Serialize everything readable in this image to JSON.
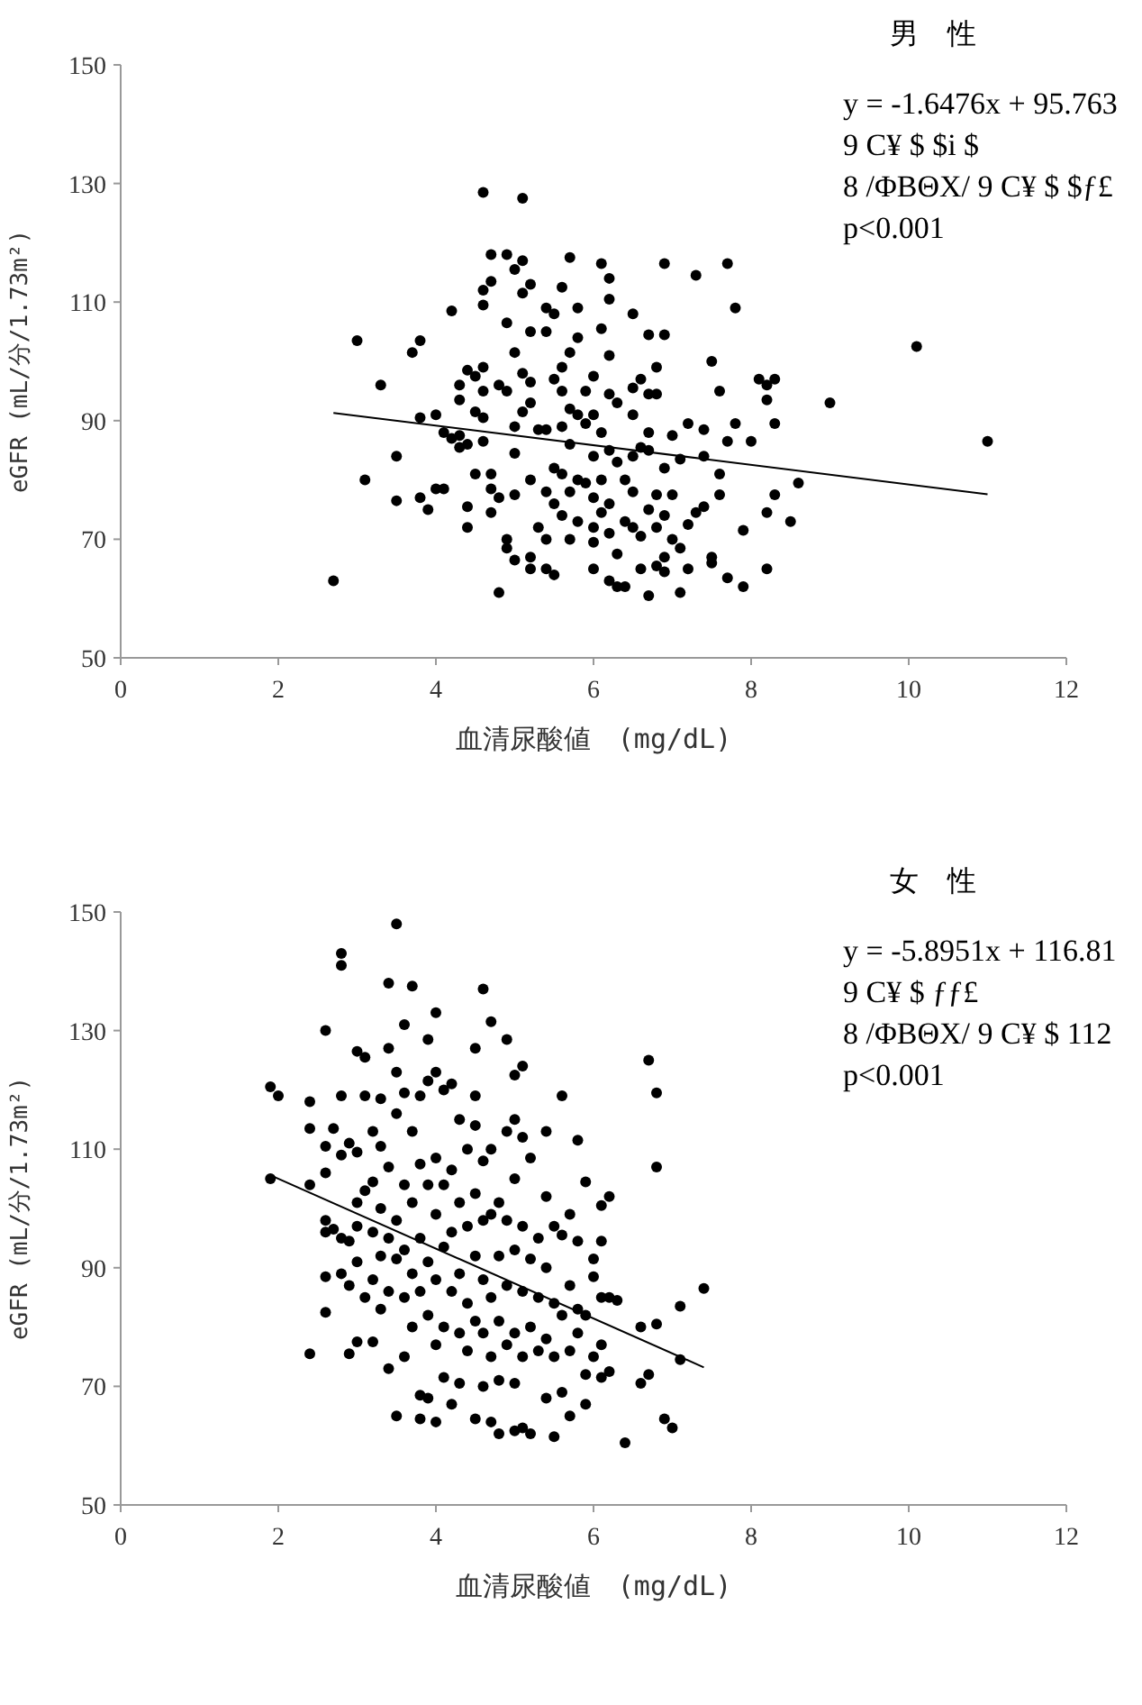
{
  "chart_data": [
    {
      "type": "scatter",
      "title": "男　性",
      "xlabel": "血清尿酸値　(mg/dL)",
      "ylabel": "eGFR (mL/分/1.73m²)",
      "annotations": [
        "y = -1.6476x + 95.763",
        "9 C¥ $ $i $",
        "8 /ΦBΘX/ 9 C¥ $ $ƒ£",
        "p<0.001"
      ],
      "xlim": [
        0,
        12
      ],
      "xticks": [
        0,
        2,
        4,
        6,
        8,
        10,
        12
      ],
      "ylim": [
        50,
        150
      ],
      "yticks": [
        50,
        70,
        90,
        110,
        130,
        150
      ],
      "grid": false,
      "series": [
        {
          "type": "scatter",
          "color": "#000000",
          "marker": "circle",
          "x": [
            2.7,
            3.0,
            3.1,
            3.3,
            3.5,
            3.5,
            3.7,
            3.8,
            3.8,
            3.8,
            3.9,
            4.0,
            4.0,
            4.1,
            4.1,
            4.2,
            4.2,
            4.3,
            4.3,
            4.3,
            4.3,
            4.4,
            4.4,
            4.4,
            4.4,
            4.5,
            4.5,
            4.5,
            4.6,
            4.6,
            4.6,
            4.6,
            4.6,
            4.6,
            4.6,
            4.7,
            4.7,
            4.7,
            4.7,
            4.7,
            4.8,
            4.8,
            4.8,
            4.9,
            4.9,
            4.9,
            4.9,
            4.9,
            5.0,
            5.0,
            5.0,
            5.0,
            5.0,
            5.0,
            5.1,
            5.1,
            5.1,
            5.1,
            5.1,
            5.2,
            5.2,
            5.2,
            5.2,
            5.2,
            5.2,
            5.2,
            5.3,
            5.3,
            5.4,
            5.4,
            5.4,
            5.4,
            5.4,
            5.4,
            5.5,
            5.5,
            5.5,
            5.5,
            5.5,
            5.6,
            5.6,
            5.6,
            5.6,
            5.6,
            5.6,
            5.7,
            5.7,
            5.7,
            5.7,
            5.7,
            5.7,
            5.8,
            5.8,
            5.8,
            5.8,
            5.8,
            5.9,
            5.9,
            5.9,
            6.0,
            6.0,
            6.0,
            6.0,
            6.0,
            6.0,
            6.0,
            6.1,
            6.1,
            6.1,
            6.1,
            6.1,
            6.2,
            6.2,
            6.2,
            6.2,
            6.2,
            6.2,
            6.2,
            6.2,
            6.3,
            6.3,
            6.3,
            6.3,
            6.4,
            6.4,
            6.4,
            6.5,
            6.5,
            6.5,
            6.5,
            6.5,
            6.5,
            6.6,
            6.6,
            6.6,
            6.6,
            6.7,
            6.7,
            6.7,
            6.7,
            6.7,
            6.7,
            6.8,
            6.8,
            6.8,
            6.8,
            6.8,
            6.9,
            6.9,
            6.9,
            6.9,
            6.9,
            6.9,
            7.0,
            7.0,
            7.0,
            7.1,
            7.1,
            7.1,
            7.2,
            7.2,
            7.2,
            7.3,
            7.3,
            7.4,
            7.4,
            7.4,
            7.5,
            7.5,
            7.5,
            7.6,
            7.6,
            7.6,
            7.7,
            7.7,
            7.7,
            7.8,
            7.8,
            7.9,
            7.9,
            8.0,
            8.1,
            8.2,
            8.2,
            8.2,
            8.2,
            8.3,
            8.3,
            8.3,
            8.5,
            8.6,
            9.0,
            10.1,
            11.0
          ],
          "values": [
            63,
            103.5,
            80,
            96,
            84,
            76.5,
            101.5,
            103.5,
            90.5,
            77,
            75,
            91,
            78.5,
            78.5,
            88,
            108.5,
            87,
            87.5,
            85.5,
            96,
            93.5,
            98.5,
            75.5,
            72,
            86,
            97.5,
            91.5,
            81,
            112,
            109.5,
            99,
            95,
            90.5,
            86.5,
            128.5,
            118,
            113.5,
            81,
            78.5,
            74.5,
            96,
            77,
            61,
            118,
            106.5,
            95,
            70,
            68.5,
            115.5,
            101.5,
            89,
            84.5,
            77.5,
            66.5,
            127.5,
            117,
            111.5,
            98,
            91.5,
            113,
            105,
            96.5,
            93,
            80,
            67,
            65,
            88.5,
            72,
            109,
            105,
            88.5,
            78,
            70,
            65,
            108,
            97,
            82,
            76,
            64,
            112.5,
            99,
            95,
            89,
            81,
            74,
            117.5,
            101.5,
            92,
            86,
            78,
            70,
            109,
            104,
            91,
            80,
            73,
            95,
            89.5,
            79.5,
            97.5,
            91,
            84,
            77,
            72,
            69.5,
            65,
            116.5,
            105.5,
            88,
            80,
            74.5,
            114,
            110.5,
            101,
            94.5,
            85,
            76,
            71,
            63,
            93,
            83,
            67.5,
            62,
            80,
            73,
            62,
            108,
            95.5,
            91,
            84,
            78,
            72,
            97,
            85.5,
            70.5,
            65,
            104.5,
            94.5,
            88,
            85,
            75,
            60.5,
            99,
            94.5,
            77.5,
            72,
            65.5,
            116.5,
            104.5,
            82,
            74,
            67,
            64.5,
            87.5,
            77.5,
            70,
            83.5,
            68.5,
            61,
            89.5,
            72.5,
            65,
            114.5,
            74.5,
            88.5,
            84,
            75.5,
            100,
            67,
            66,
            95,
            81,
            77.5,
            116.5,
            86.5,
            63.5,
            109,
            89.5,
            71.5,
            62,
            86.5,
            97,
            96,
            93.5,
            74.5,
            65,
            97,
            89.5,
            77.5,
            73,
            79.5,
            93,
            102.5,
            86.5
          ]
        },
        {
          "type": "line",
          "color": "#000000",
          "marker": "none",
          "x": [
            2.7,
            11.0
          ],
          "values": [
            91.3,
            77.6
          ]
        }
      ]
    },
    {
      "type": "scatter",
      "title": "女　性",
      "xlabel": "血清尿酸値　(mg/dL)",
      "ylabel": "eGFR (mL/分/1.73m²)",
      "annotations": [
        "y = -5.8951x + 116.81",
        "9 C¥ $ ƒƒ£",
        "8 /ΦBΘX/ 9 C¥ $ 112",
        "p<0.001"
      ],
      "xlim": [
        0,
        12
      ],
      "xticks": [
        0,
        2,
        4,
        6,
        8,
        10,
        12
      ],
      "ylim": [
        50,
        150
      ],
      "yticks": [
        50,
        70,
        90,
        110,
        130,
        150
      ],
      "grid": false,
      "series": [
        {
          "type": "scatter",
          "color": "#000000",
          "marker": "circle",
          "x": [
            1.9,
            1.9,
            2.0,
            2.4,
            2.4,
            2.4,
            2.4,
            2.6,
            2.6,
            2.6,
            2.6,
            2.6,
            2.6,
            2.6,
            2.7,
            2.7,
            2.8,
            2.8,
            2.8,
            2.8,
            2.8,
            2.8,
            2.9,
            2.9,
            2.9,
            2.9,
            3.0,
            3.0,
            3.0,
            3.0,
            3.0,
            3.0,
            3.1,
            3.1,
            3.1,
            3.1,
            3.2,
            3.2,
            3.2,
            3.2,
            3.2,
            3.3,
            3.3,
            3.3,
            3.3,
            3.3,
            3.4,
            3.4,
            3.4,
            3.4,
            3.4,
            3.4,
            3.5,
            3.5,
            3.5,
            3.5,
            3.5,
            3.5,
            3.6,
            3.6,
            3.6,
            3.6,
            3.6,
            3.6,
            3.7,
            3.7,
            3.7,
            3.7,
            3.7,
            3.8,
            3.8,
            3.8,
            3.8,
            3.8,
            3.8,
            3.9,
            3.9,
            3.9,
            3.9,
            3.9,
            3.9,
            4.0,
            4.0,
            4.0,
            4.0,
            4.0,
            4.0,
            4.0,
            4.1,
            4.1,
            4.1,
            4.1,
            4.1,
            4.2,
            4.2,
            4.2,
            4.2,
            4.2,
            4.3,
            4.3,
            4.3,
            4.3,
            4.3,
            4.4,
            4.4,
            4.4,
            4.4,
            4.5,
            4.5,
            4.5,
            4.5,
            4.5,
            4.5,
            4.5,
            4.6,
            4.6,
            4.6,
            4.6,
            4.6,
            4.6,
            4.7,
            4.7,
            4.7,
            4.7,
            4.7,
            4.7,
            4.8,
            4.8,
            4.8,
            4.8,
            4.8,
            4.9,
            4.9,
            4.9,
            4.9,
            4.9,
            5.0,
            5.0,
            5.0,
            5.0,
            5.0,
            5.0,
            5.0,
            5.1,
            5.1,
            5.1,
            5.1,
            5.1,
            5.1,
            5.2,
            5.2,
            5.2,
            5.2,
            5.3,
            5.3,
            5.3,
            5.4,
            5.4,
            5.4,
            5.4,
            5.4,
            5.5,
            5.5,
            5.5,
            5.5,
            5.6,
            5.6,
            5.6,
            5.6,
            5.7,
            5.7,
            5.7,
            5.7,
            5.8,
            5.8,
            5.8,
            5.8,
            5.9,
            5.9,
            5.9,
            5.9,
            6.0,
            6.0,
            6.0,
            6.1,
            6.1,
            6.1,
            6.1,
            6.1,
            6.2,
            6.2,
            6.2,
            6.3,
            6.4,
            6.6,
            6.6,
            6.7,
            6.7,
            6.8,
            6.8,
            6.8,
            6.9,
            7.0,
            7.1,
            7.1,
            7.4
          ],
          "values": [
            120.5,
            105,
            119,
            118,
            113.5,
            104,
            75.5,
            130,
            110.5,
            106,
            98,
            96,
            88.5,
            82.5,
            113.5,
            96.5,
            143,
            141,
            119,
            109,
            95,
            89,
            111,
            94.5,
            87,
            75.5,
            126.5,
            109.5,
            101,
            97,
            91,
            77.5,
            125.5,
            119,
            103,
            85,
            113,
            104.5,
            96,
            88,
            77.5,
            118.5,
            110.5,
            100,
            92,
            83,
            138,
            127,
            107,
            95,
            86,
            73,
            148,
            123,
            116,
            98,
            91.5,
            65,
            131,
            119.5,
            104,
            93,
            85,
            75,
            137.5,
            113,
            101,
            89,
            80,
            119,
            107.5,
            95,
            86,
            68.5,
            64.5,
            128.5,
            121.5,
            104,
            91,
            82,
            68,
            133,
            123,
            108.5,
            99,
            88,
            77,
            64,
            120,
            104,
            93.5,
            80,
            71.5,
            121,
            106.5,
            96,
            86,
            67,
            115,
            101,
            89,
            79,
            70.5,
            110,
            97,
            84,
            76,
            127,
            119,
            114,
            102.5,
            92,
            81,
            64.5,
            137,
            108,
            98,
            88,
            79,
            70,
            131.5,
            110,
            99,
            85,
            75,
            64,
            101,
            92,
            81,
            71,
            62,
            128.5,
            113,
            98,
            87,
            77,
            122.5,
            115,
            105,
            93,
            79,
            70.5,
            62.5,
            124,
            112,
            97,
            86,
            75,
            63,
            108.5,
            91.5,
            80,
            62,
            95,
            85,
            76,
            113,
            102,
            90,
            78,
            68,
            97,
            84,
            75,
            61.5,
            119,
            95.5,
            82,
            69,
            99,
            87,
            76,
            65,
            111.5,
            94.5,
            83,
            79,
            104.5,
            82,
            72,
            67,
            91.5,
            88.5,
            75,
            100.5,
            94.5,
            85,
            77,
            71.5,
            102,
            85,
            72.5,
            84.5,
            60.5,
            80,
            70.5,
            125,
            72,
            119.5,
            107,
            80.5,
            64.5,
            63,
            83.5,
            74.5,
            86.5
          ]
        },
        {
          "type": "line",
          "color": "#000000",
          "marker": "none",
          "x": [
            1.9,
            7.4
          ],
          "values": [
            105.6,
            73.2
          ]
        }
      ]
    }
  ]
}
